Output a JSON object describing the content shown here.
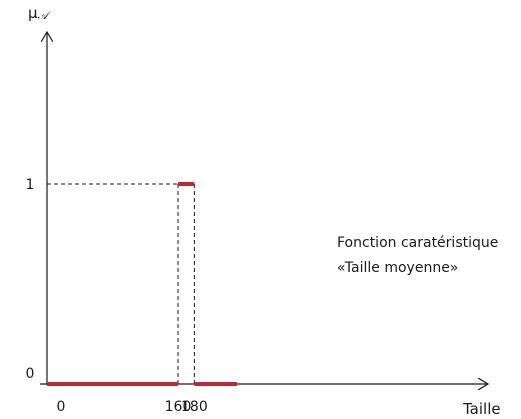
{
  "chart_data": {
    "type": "line",
    "ylabel": "μ",
    "ylabel_subscript": "𝒜",
    "xlabel": "Taille",
    "x_ticks": [
      "0",
      "160",
      "180"
    ],
    "x_tick_values": [
      0,
      160,
      180
    ],
    "y_ticks": [
      "0",
      "1"
    ],
    "y_tick_values": [
      0,
      1
    ],
    "xlim": [
      0,
      232
    ],
    "ylim": [
      0,
      1
    ],
    "grid": false,
    "series": [
      {
        "segments": [
          {
            "x": [
              0,
              160
            ],
            "y": [
              0,
              0
            ]
          },
          {
            "x": [
              160,
              180
            ],
            "y": [
              1,
              1
            ]
          },
          {
            "x": [
              180,
              232
            ],
            "y": [
              0,
              0
            ]
          }
        ]
      }
    ],
    "annotation": [
      "Fonction caratéristique",
      "«Taille moyenne»"
    ],
    "colors": {
      "series": "#c0282f",
      "axis": "#1a1a1a",
      "guide": "#1a1a1a"
    }
  }
}
